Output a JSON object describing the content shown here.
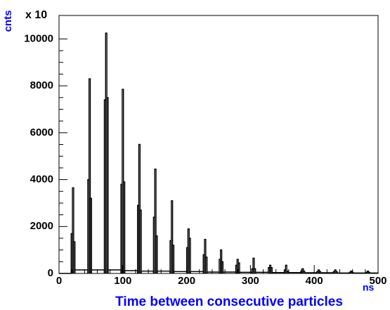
{
  "chart_data": {
    "type": "histogram",
    "title": "Time between consecutive particles",
    "x_label": "ns",
    "y_label": "cnts",
    "y_multiplier": "x 10",
    "color": "#000000",
    "bins": [
      0,
      19,
      21,
      23,
      25,
      45,
      47,
      49,
      51,
      71,
      73,
      75,
      77,
      97,
      99,
      101,
      103,
      123,
      125,
      127,
      129,
      148,
      150,
      152,
      154,
      174,
      176,
      178,
      180,
      200,
      202,
      204,
      206,
      226,
      228,
      230,
      232,
      251,
      253,
      255,
      257,
      277,
      279,
      281,
      283,
      302,
      304,
      306,
      308,
      328,
      330,
      332,
      334,
      353,
      355,
      357,
      359,
      379,
      381,
      383,
      385,
      404,
      406,
      408,
      410,
      430,
      432,
      434,
      436,
      455,
      457,
      459,
      461,
      481,
      483,
      485,
      487,
      500
    ],
    "counts": [
      0,
      1700,
      3650,
      1350,
      150,
      4000,
      8300,
      3200,
      150,
      7400,
      10250,
      7500,
      150,
      3800,
      7850,
      3900,
      120,
      2900,
      5500,
      2700,
      100,
      2400,
      4450,
      1600,
      100,
      1400,
      3100,
      1200,
      80,
      1100,
      1900,
      1500,
      80,
      800,
      1450,
      700,
      60,
      600,
      1000,
      500,
      60,
      350,
      600,
      450,
      50,
      200,
      650,
      200,
      50,
      250,
      350,
      250,
      40,
      150,
      350,
      100,
      40,
      100,
      200,
      100,
      30,
      80,
      150,
      80,
      30,
      80,
      150,
      80,
      20,
      50,
      100,
      50,
      20,
      50,
      100,
      50,
      20
    ],
    "xlim": [
      0,
      500
    ],
    "xticks": [
      0,
      100,
      200,
      300,
      400,
      500
    ],
    "ylim": [
      0,
      11000
    ],
    "yticks": [
      0,
      2000,
      4000,
      6000,
      8000,
      10000
    ]
  }
}
